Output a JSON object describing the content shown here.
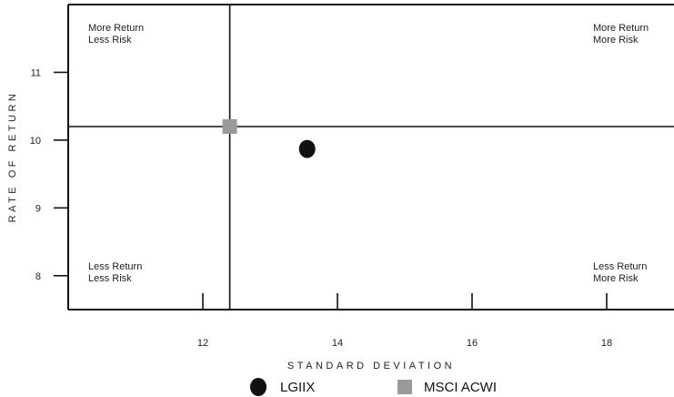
{
  "chart_data": {
    "type": "scatter",
    "xlabel": "STANDARD DEVIATION",
    "ylabel": "RATE OF RETURN",
    "xlim": [
      10.0,
      19.0
    ],
    "ylim": [
      7.5,
      12.0
    ],
    "x_ticks": [
      12,
      14,
      16,
      18
    ],
    "y_ticks": [
      8,
      9,
      10,
      11
    ],
    "reference_point": {
      "x": 12.4,
      "y": 10.2
    },
    "series": [
      {
        "name": "LGIIX",
        "marker": "circle",
        "color": "#111111",
        "points": [
          {
            "x": 13.55,
            "y": 9.87
          }
        ]
      },
      {
        "name": "MSCI ACWI",
        "marker": "square",
        "color": "#9a9a9a",
        "points": [
          {
            "x": 12.4,
            "y": 10.2
          }
        ]
      }
    ],
    "quadrants": {
      "top_left": [
        "More Return",
        "Less Risk"
      ],
      "top_right": [
        "More Return",
        "More Risk"
      ],
      "bottom_left": [
        "Less Return",
        "Less Risk"
      ],
      "bottom_right": [
        "Less Return",
        "More Risk"
      ]
    },
    "grid": false,
    "legend_position": "bottom-center"
  }
}
